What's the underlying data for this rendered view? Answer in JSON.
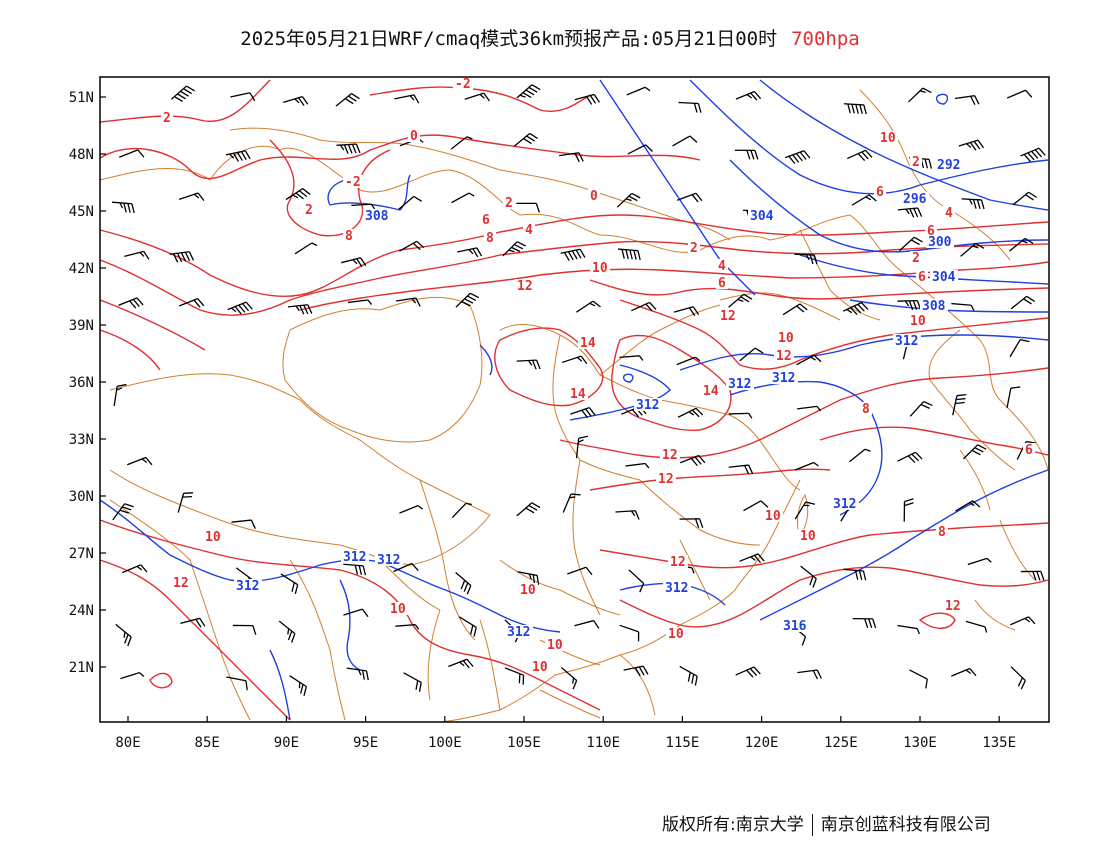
{
  "title": {
    "main": "2025年05月21日WRF/cmaq模式36km预报产品:05月21日00时",
    "level": "700hpa",
    "level_color": "#e03030"
  },
  "map": {
    "lon_ticks": [
      "80E",
      "85E",
      "90E",
      "95E",
      "100E",
      "105E",
      "110E",
      "115E",
      "120E",
      "125E",
      "130E",
      "135E"
    ],
    "lat_ticks": [
      "51N",
      "48N",
      "45N",
      "42N",
      "39N",
      "36N",
      "33N",
      "30N",
      "27N",
      "24N",
      "21N"
    ],
    "temperature_labels": [
      "-2",
      "2",
      "0",
      "-2",
      "2",
      "6",
      "8",
      "0",
      "2",
      "4",
      "8",
      "2",
      "10",
      "12",
      "2",
      "4",
      "6",
      "10",
      "6",
      "4",
      "2",
      "6",
      "6",
      "10",
      "14",
      "14",
      "10",
      "12",
      "12",
      "14",
      "8",
      "6",
      "12",
      "10",
      "10",
      "8",
      "10",
      "12",
      "10",
      "12",
      "10",
      "12",
      "10",
      "10",
      "10",
      "12"
    ],
    "height_labels": [
      "308",
      "292",
      "296",
      "304",
      "300",
      "304",
      "308",
      "312",
      "312",
      "312",
      "312",
      "312",
      "312",
      "312",
      "312",
      "312",
      "312",
      "316"
    ],
    "colors": {
      "temperature": "#e03030",
      "height": "#1f3fe0",
      "border": "#d08030",
      "wind": "#000000",
      "frame": "#000000"
    }
  },
  "copyright": {
    "left": "版权所有:南京大学",
    "right": "南京创蓝科技有限公司"
  }
}
